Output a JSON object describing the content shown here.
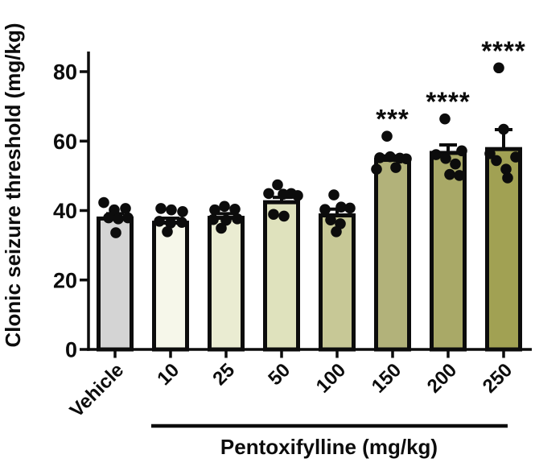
{
  "figure": {
    "background": "#ffffff",
    "ink_color": "#0c0c0c"
  },
  "chart_data": {
    "type": "bar",
    "title": "",
    "ylabel": "Clonic seizure threshold (mg/kg)",
    "xlabel": "Pentoxifylline (mg/kg)",
    "ylim": [
      0,
      86
    ],
    "yticks": [
      0,
      20,
      40,
      60,
      80
    ],
    "grid": false,
    "legend_position": "none",
    "categories": [
      "Vehicle",
      "10",
      "25",
      "50",
      "100",
      "150",
      "200",
      "250"
    ],
    "series": [
      {
        "name": "Clonic seizure threshold (mg/kg)",
        "values": [
          37.7,
          36.5,
          37.9,
          42.4,
          38.6,
          54.6,
          56.6,
          57.7
        ],
        "sem": [
          1.4,
          1.3,
          1.2,
          1.4,
          1.8,
          1.1,
          2.3,
          5.6
        ],
        "significance": [
          "",
          "",
          "",
          "",
          "",
          "***",
          "****",
          "****"
        ],
        "bar_colors": [
          "#d4d4d4",
          "#f6f7ea",
          "#eaecd2",
          "#dfe2bd",
          "#c7c896",
          "#b2b27a",
          "#a9a967",
          "#a1a153"
        ],
        "points": [
          [
            [
              -14,
              42.3
            ],
            [
              -1,
              40.2
            ],
            [
              13,
              40.6
            ],
            [
              -8,
              37.9
            ],
            [
              4,
              37.6
            ],
            [
              16,
              37.9
            ],
            [
              1,
              33.6
            ]
          ],
          [
            [
              -12,
              40.6
            ],
            [
              1,
              40.2
            ],
            [
              15,
              39.7
            ],
            [
              -14,
              36.9
            ],
            [
              0,
              36.4
            ],
            [
              14,
              36.6
            ],
            [
              -4,
              33.9
            ]
          ],
          [
            [
              -2,
              41.2
            ],
            [
              -14,
              40.2
            ],
            [
              11,
              40.4
            ],
            [
              -16,
              37.4
            ],
            [
              0,
              37.2
            ],
            [
              14,
              37.6
            ],
            [
              -6,
              34.9
            ]
          ],
          [
            [
              -5,
              47.4
            ],
            [
              -16,
              44.9
            ],
            [
              2,
              44.7
            ],
            [
              12,
              44.9
            ],
            [
              20,
              44.3
            ],
            [
              -10,
              38.9
            ],
            [
              3,
              38.4
            ]
          ],
          [
            [
              -4,
              44.5
            ],
            [
              -15,
              40.3
            ],
            [
              5,
              41.0
            ],
            [
              16,
              40.7
            ],
            [
              -8,
              37.3
            ],
            [
              4,
              36.2
            ],
            [
              -1,
              33.9
            ]
          ],
          [
            [
              -7,
              61.4
            ],
            [
              -16,
              55.2
            ],
            [
              -3,
              55.5
            ],
            [
              9,
              55.1
            ],
            [
              17,
              54.9
            ],
            [
              -20,
              51.9
            ],
            [
              4,
              52.4
            ]
          ],
          [
            [
              -4,
              66.4
            ],
            [
              17,
              57.2
            ],
            [
              -15,
              56.1
            ],
            [
              -3,
              55.0
            ],
            [
              9,
              53.4
            ],
            [
              2,
              50.4
            ],
            [
              14,
              50.1
            ]
          ],
          [
            [
              -6,
              81.1
            ],
            [
              0,
              63.4
            ],
            [
              -17,
              56.4
            ],
            [
              15,
              55.4
            ],
            [
              -9,
              54.4
            ],
            [
              3,
              51.9
            ],
            [
              5,
              49.4
            ]
          ]
        ],
        "group_underline": {
          "from_category": "10",
          "to_category": "250"
        }
      }
    ]
  }
}
